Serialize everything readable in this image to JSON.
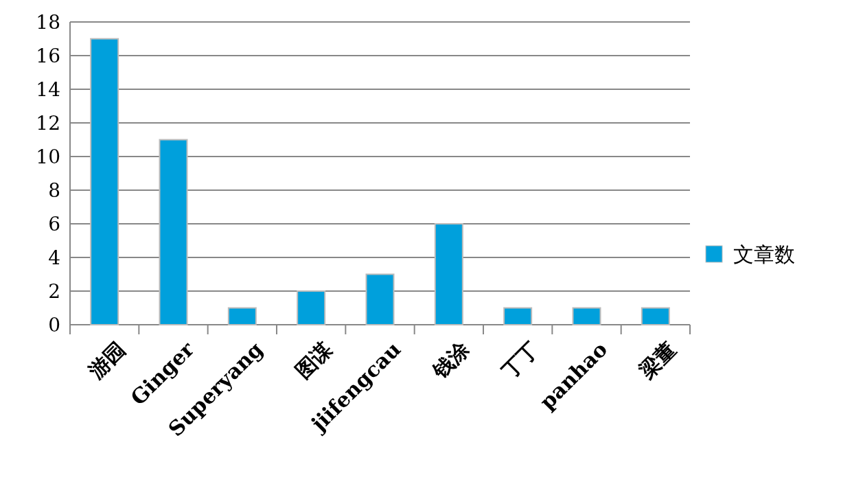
{
  "chart_data": {
    "type": "bar",
    "categories": [
      "游园",
      "Ginger",
      "Superyang",
      "图谋",
      "jiifengcau",
      "钱涂",
      "丁丁",
      "panhao",
      "梁董"
    ],
    "series": [
      {
        "name": "文章数",
        "color": "#00a0dc",
        "values": [
          17,
          11,
          1,
          2,
          3,
          6,
          1,
          1,
          1
        ]
      }
    ],
    "ylim": [
      0,
      18
    ],
    "yticks": [
      0,
      2,
      4,
      6,
      8,
      10,
      12,
      14,
      16,
      18
    ],
    "grid": "y",
    "legend": "right"
  }
}
